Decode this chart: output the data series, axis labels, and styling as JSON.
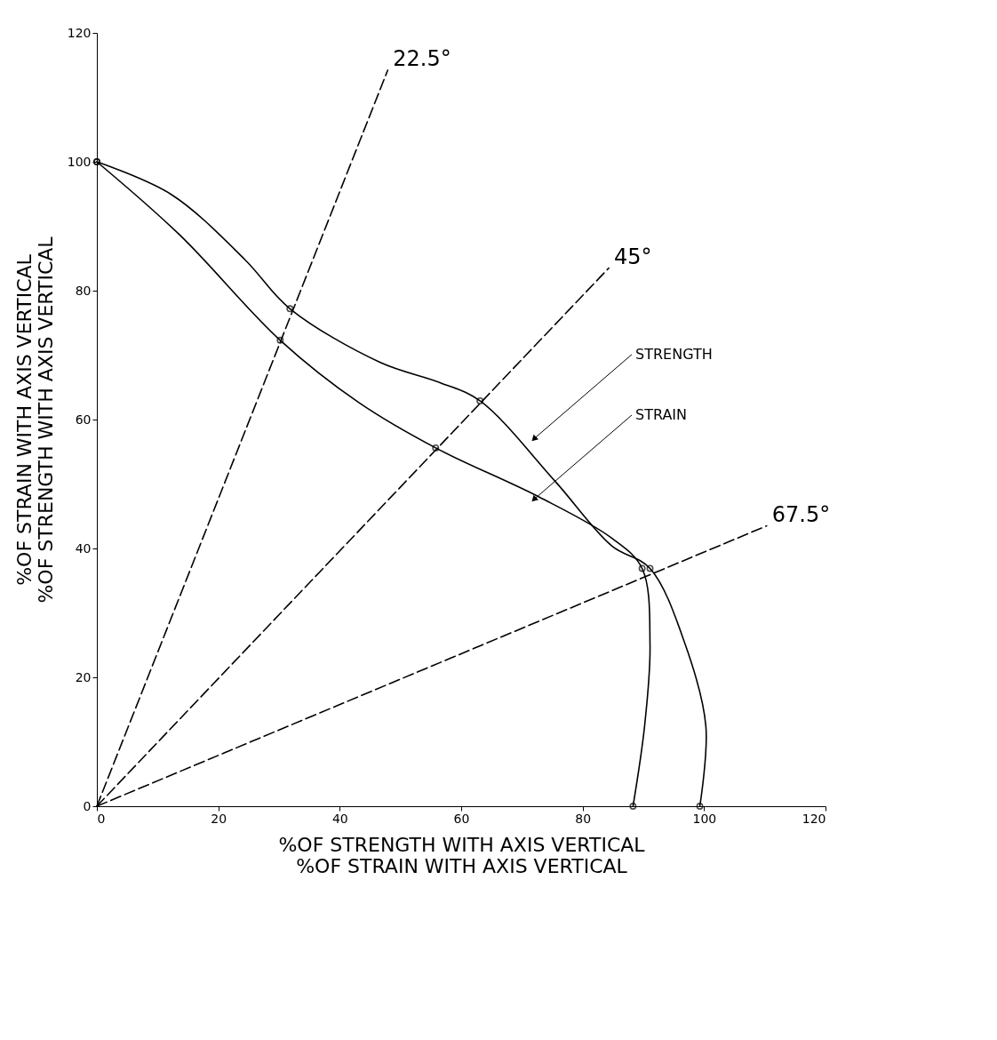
{
  "chart_data": {
    "type": "line",
    "xlabel": "%OF STRENGTH WITH AXIS VERTICAL\n%OF STRAIN WITH AXIS VERTICAL",
    "ylabel": "%OF STRAIN WITH AXIS VERTICAL\n%OF STRENGTH WITH AXIS VERTICAL",
    "xlim": [
      0,
      120
    ],
    "ylim": [
      0,
      120
    ],
    "xticks": [
      0,
      20,
      40,
      60,
      80,
      100,
      120
    ],
    "yticks": [
      0,
      20,
      40,
      60,
      80,
      100,
      120
    ],
    "grid": false,
    "legend": false,
    "series": [
      {
        "color": "#000000",
        "line_style": "solid",
        "x": [
          0,
          12.3,
          24.4,
          31.8,
          46.6,
          56.6,
          63.1,
          75.4,
          84.8,
          91.1,
          96.9,
          100.3,
          99.3
        ],
        "values": [
          100,
          94.9,
          84.8,
          77.2,
          68.9,
          65.7,
          62.9,
          50.5,
          40.4,
          36.9,
          25.1,
          12.4,
          0
        ]
      },
      {
        "color": "#000000",
        "line_style": "solid",
        "x": [
          0,
          13.7,
          30.2,
          43.2,
          55.8,
          72.8,
          84.8,
          89.8,
          91.1,
          90.2,
          88.3
        ],
        "values": [
          100,
          88.6,
          72.3,
          62.6,
          55.6,
          48.0,
          41.6,
          36.9,
          25.1,
          12.4,
          0
        ]
      },
      {
        "type": "scatter",
        "color": "#000000",
        "marker": "circle",
        "x": [
          0,
          31.8,
          63.1,
          91.1,
          99.3
        ],
        "values": [
          100,
          77.2,
          62.9,
          36.9,
          0
        ]
      },
      {
        "type": "scatter",
        "color": "#000000",
        "marker": "circle",
        "x": [
          0,
          30.2,
          55.8,
          89.8,
          88.3
        ],
        "values": [
          100,
          72.3,
          55.6,
          36.9,
          0
        ]
      },
      {
        "name": "22.5°",
        "color": "#000000",
        "line_style": "dashed",
        "x": [
          0,
          47.9
        ],
        "values": [
          0,
          114.2
        ]
      },
      {
        "name": "45°",
        "color": "#000000",
        "line_style": "dashed",
        "x": [
          0,
          84.3
        ],
        "values": [
          0,
          83.5
        ]
      },
      {
        "name": "67.5°",
        "color": "#000000",
        "line_style": "dashed",
        "x": [
          0,
          110.3
        ],
        "values": [
          0,
          43.5
        ]
      }
    ],
    "annotations": [
      {
        "text": "STRENGTH",
        "x": 72.1,
        "y": 57.1
      },
      {
        "text": "STRAIN",
        "x": 72.1,
        "y": 47.7
      }
    ]
  }
}
